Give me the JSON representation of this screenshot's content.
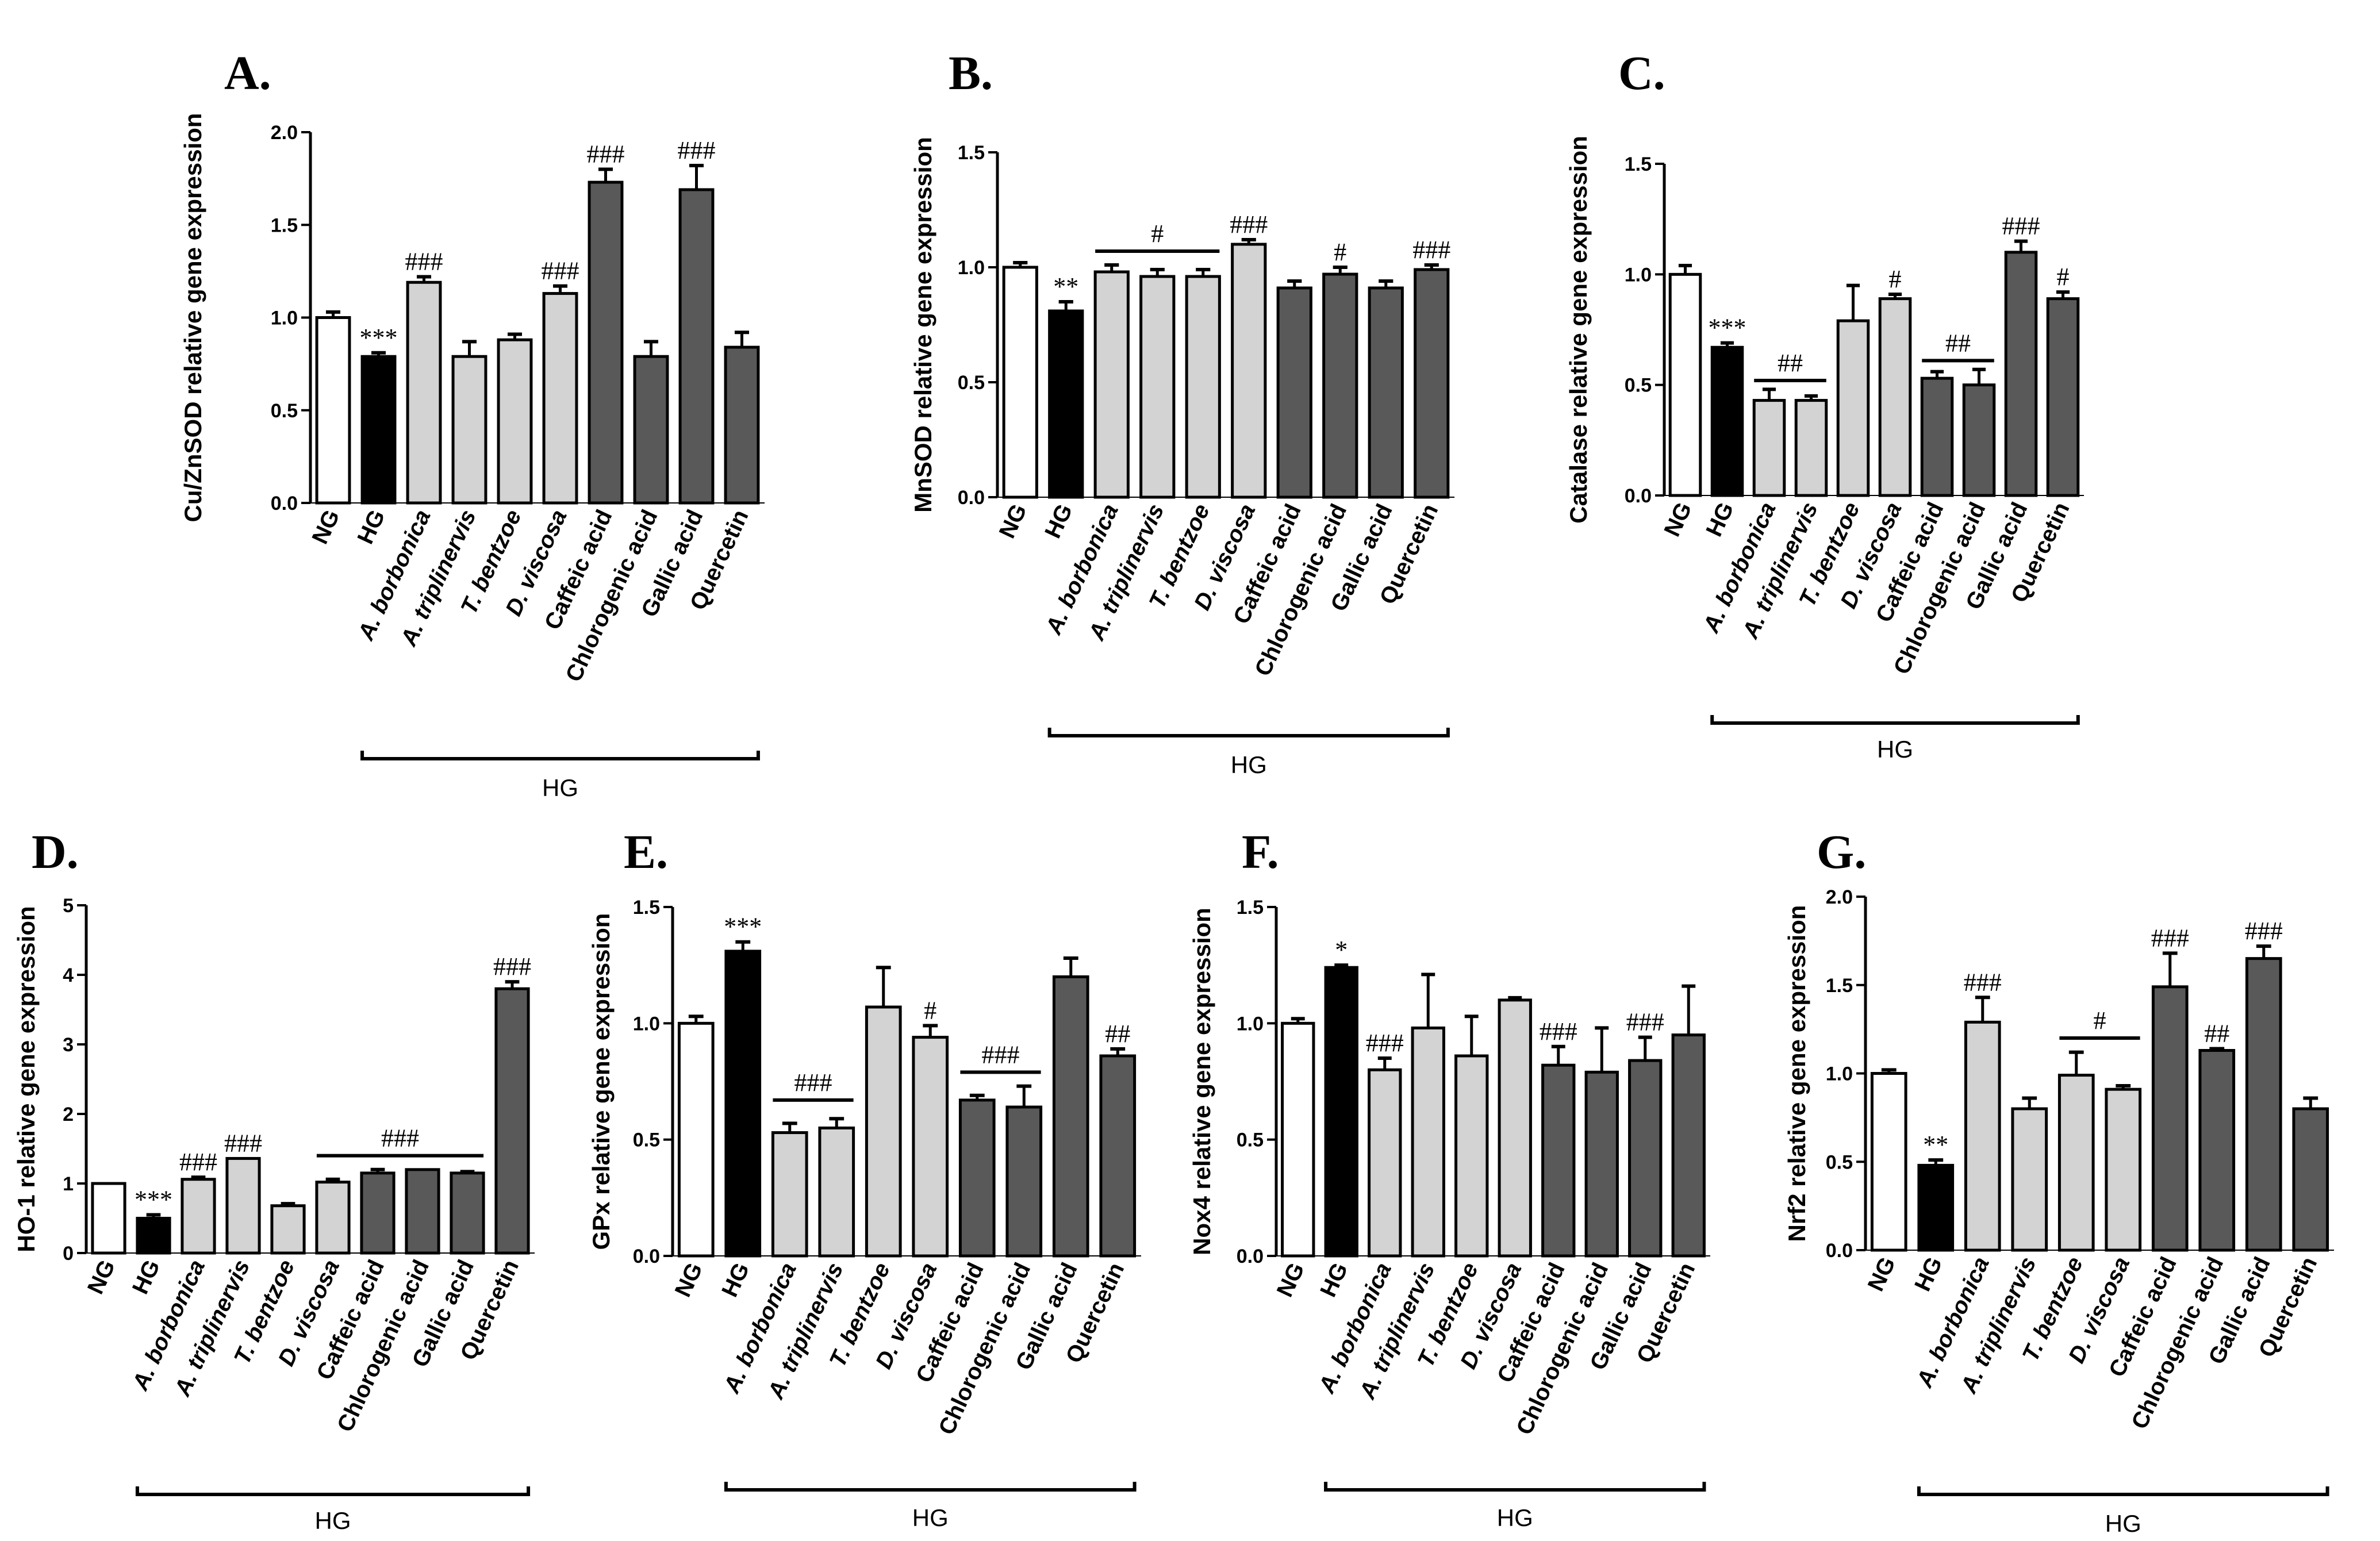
{
  "figure": {
    "colors": {
      "ng": "#ffffff",
      "hg": "#000000",
      "extract": "#d3d3d3",
      "compound": "#595959",
      "stroke": "#000000"
    },
    "group_label": "HG"
  },
  "chart_data": [
    {
      "type": "bar",
      "panel": "A.",
      "ylabel": "Cu/ZnSOD relative gene expression",
      "ylim": [
        0,
        2.0
      ],
      "yticks": [
        "0.0",
        "0.5",
        "1.0",
        "1.5",
        "2.0"
      ],
      "categories": [
        "NG",
        "HG",
        "A. borbonica",
        "A. triplinervis",
        "T. bentzoe",
        "D. viscosa",
        "Caffeic acid",
        "Chlorogenic acid",
        "Gallic acid",
        "Quercetin"
      ],
      "values": [
        1.0,
        0.79,
        1.19,
        0.79,
        0.88,
        1.13,
        1.73,
        0.79,
        1.69,
        0.84
      ],
      "errors": [
        0.03,
        0.02,
        0.03,
        0.08,
        0.03,
        0.04,
        0.07,
        0.08,
        0.13,
        0.08
      ],
      "annotations": [
        "",
        "***",
        "###",
        "",
        "",
        "###",
        "###",
        "",
        "###",
        ""
      ],
      "bracket_annotations": [],
      "group_label": "HG"
    },
    {
      "type": "bar",
      "panel": "B.",
      "ylabel": "MnSOD relative gene expression",
      "ylim": [
        0,
        1.5
      ],
      "yticks": [
        "0.0",
        "0.5",
        "1.0",
        "1.5"
      ],
      "categories": [
        "NG",
        "HG",
        "A. borbonica",
        "A. triplinervis",
        "T. bentzoe",
        "D. viscosa",
        "Caffeic acid",
        "Chlorogenic acid",
        "Gallic acid",
        "Quercetin"
      ],
      "values": [
        1.0,
        0.81,
        0.98,
        0.96,
        0.96,
        1.1,
        0.91,
        0.97,
        0.91,
        0.99
      ],
      "errors": [
        0.02,
        0.04,
        0.03,
        0.03,
        0.03,
        0.02,
        0.03,
        0.03,
        0.03,
        0.02
      ],
      "annotations": [
        "",
        "**",
        "",
        "",
        "",
        "###",
        "",
        "#",
        "",
        "###"
      ],
      "bracket_annotations": [
        {
          "from": 2,
          "to": 4,
          "value": 1.07,
          "text": "#"
        }
      ],
      "group_label": "HG"
    },
    {
      "type": "bar",
      "panel": "C.",
      "ylabel": "Catalase relative gene expression",
      "ylim": [
        0,
        1.5
      ],
      "yticks": [
        "0.0",
        "0.5",
        "1.0",
        "1.5"
      ],
      "categories": [
        "NG",
        "HG",
        "A. borbonica",
        "A. triplinervis",
        "T. bentzoe",
        "D. viscosa",
        "Caffeic acid",
        "Chlorogenic acid",
        "Gallic acid",
        "Quercetin"
      ],
      "values": [
        1.0,
        0.67,
        0.43,
        0.43,
        0.79,
        0.89,
        0.53,
        0.5,
        1.1,
        0.89
      ],
      "errors": [
        0.04,
        0.02,
        0.05,
        0.02,
        0.16,
        0.02,
        0.03,
        0.07,
        0.05,
        0.03
      ],
      "annotations": [
        "",
        "***",
        "",
        "",
        "",
        "#",
        "",
        "",
        "###",
        "#"
      ],
      "bracket_annotations": [
        {
          "from": 2,
          "to": 3,
          "value": 0.52,
          "text": "##"
        },
        {
          "from": 6,
          "to": 7,
          "value": 0.61,
          "text": "##"
        }
      ],
      "group_label": "HG"
    },
    {
      "type": "bar",
      "panel": "D.",
      "ylabel": "HO-1 relative gene expression",
      "ylim": [
        0,
        5
      ],
      "yticks": [
        "0",
        "1",
        "2",
        "3",
        "4",
        "5"
      ],
      "categories": [
        "NG",
        "HG",
        "A. borbonica",
        "A. triplinervis",
        "T. bentzoe",
        "D. viscosa",
        "Caffeic acid",
        "Chlorogenic acid",
        "Gallic acid",
        "Quercetin"
      ],
      "values": [
        1.0,
        0.5,
        1.06,
        1.36,
        0.68,
        1.02,
        1.15,
        1.2,
        1.15,
        3.8
      ],
      "errors": [
        0.0,
        0.05,
        0.03,
        0.0,
        0.03,
        0.04,
        0.05,
        0.0,
        0.02,
        0.1
      ],
      "annotations": [
        "",
        "***",
        "###",
        "###",
        "",
        "",
        "",
        "",
        "",
        "###"
      ],
      "bracket_annotations": [
        {
          "from": 5,
          "to": 8,
          "value": 1.4,
          "text": "###"
        }
      ],
      "group_label": "HG"
    },
    {
      "type": "bar",
      "panel": "E.",
      "ylabel": "GPx relative gene expression",
      "ylim": [
        0,
        1.5
      ],
      "yticks": [
        "0.0",
        "0.5",
        "1.0",
        "1.5"
      ],
      "categories": [
        "NG",
        "HG",
        "A. borbonica",
        "A. triplinervis",
        "T. bentzoe",
        "D. viscosa",
        "Caffeic acid",
        "Chlorogenic acid",
        "Gallic acid",
        "Quercetin"
      ],
      "values": [
        1.0,
        1.31,
        0.53,
        0.55,
        1.07,
        0.94,
        0.67,
        0.64,
        1.2,
        0.86
      ],
      "errors": [
        0.03,
        0.04,
        0.04,
        0.04,
        0.17,
        0.05,
        0.02,
        0.09,
        0.08,
        0.03
      ],
      "annotations": [
        "",
        "***",
        "",
        "",
        "",
        "#",
        "",
        "",
        "",
        "##"
      ],
      "bracket_annotations": [
        {
          "from": 2,
          "to": 3,
          "value": 0.67,
          "text": "###"
        },
        {
          "from": 6,
          "to": 7,
          "value": 0.79,
          "text": "###"
        }
      ],
      "group_label": "HG"
    },
    {
      "type": "bar",
      "panel": "F.",
      "ylabel": "Nox4 relative gene expression",
      "ylim": [
        0,
        1.5
      ],
      "yticks": [
        "0.0",
        "0.5",
        "1.0",
        "1.5"
      ],
      "categories": [
        "NG",
        "HG",
        "A. borbonica",
        "A. triplinervis",
        "T. bentzoe",
        "D. viscosa",
        "Caffeic acid",
        "Chlorogenic acid",
        "Gallic acid",
        "Quercetin"
      ],
      "values": [
        1.0,
        1.24,
        0.8,
        0.98,
        0.86,
        1.1,
        0.82,
        0.79,
        0.84,
        0.95
      ],
      "errors": [
        0.02,
        0.01,
        0.05,
        0.23,
        0.17,
        0.01,
        0.08,
        0.19,
        0.1,
        0.21
      ],
      "annotations": [
        "",
        "*",
        "###",
        "",
        "",
        "",
        "###",
        "",
        "###",
        ""
      ],
      "bracket_annotations": [],
      "group_label": "HG"
    },
    {
      "type": "bar",
      "panel": "G.",
      "ylabel": "Nrf2 relative gene expression",
      "ylim": [
        0,
        2.0
      ],
      "yticks": [
        "0.0",
        "0.5",
        "1.0",
        "1.5",
        "2.0"
      ],
      "categories": [
        "NG",
        "HG",
        "A. borbonica",
        "A. triplinervis",
        "T. bentzoe",
        "D. viscosa",
        "Caffeic acid",
        "Chlorogenic acid",
        "Gallic acid",
        "Quercetin"
      ],
      "values": [
        1.0,
        0.48,
        1.29,
        0.8,
        0.99,
        0.91,
        1.49,
        1.13,
        1.65,
        0.8
      ],
      "errors": [
        0.02,
        0.03,
        0.14,
        0.06,
        0.13,
        0.02,
        0.19,
        0.01,
        0.07,
        0.06
      ],
      "annotations": [
        "",
        "**",
        "###",
        "",
        "",
        "",
        "###",
        "##",
        "###",
        ""
      ],
      "bracket_annotations": [
        {
          "from": 4,
          "to": 5,
          "value": 1.2,
          "text": "#"
        }
      ],
      "group_label": "HG"
    }
  ]
}
